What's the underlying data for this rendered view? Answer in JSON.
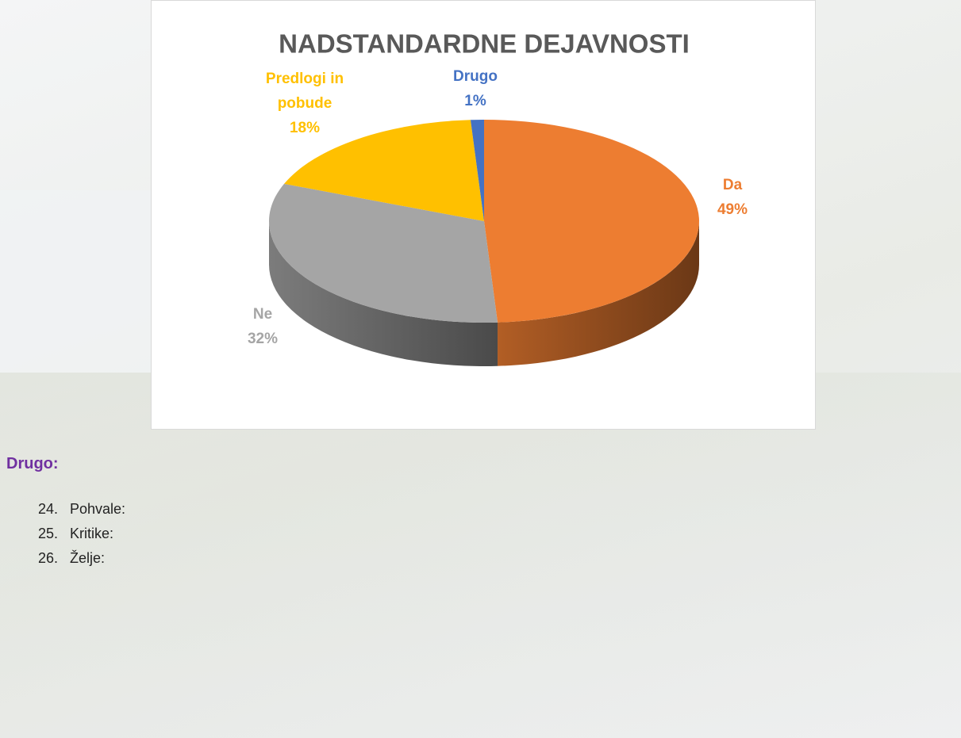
{
  "chart_data": {
    "type": "pie",
    "title": "NADSTANDARDNE DEJAVNOSTI",
    "categories": [
      "Da",
      "Ne",
      "Predlogi in pobude",
      "Drugo"
    ],
    "values": [
      49,
      32,
      18,
      1
    ],
    "value_labels": [
      "49%",
      "32%",
      "18%",
      "1%"
    ],
    "colors": [
      "#ed7d31",
      "#a5a5a5",
      "#ffc000",
      "#4472c4"
    ]
  },
  "section": {
    "heading": "Drugo:",
    "items": [
      {
        "number": "24.",
        "text": "Pohvale:"
      },
      {
        "number": "25.",
        "text": "Kritike:"
      },
      {
        "number": "26.",
        "text": "Želje:"
      }
    ]
  }
}
